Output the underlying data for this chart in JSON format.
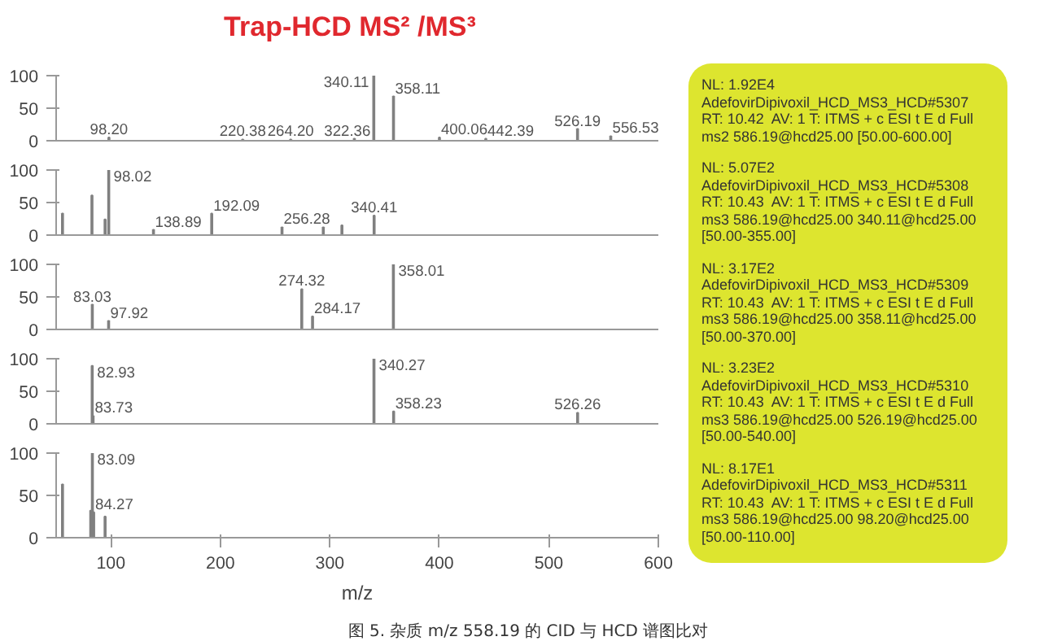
{
  "chart_data": [
    {
      "type": "bar",
      "title": "Trap-HCD MS² /MS³",
      "color": "#808080",
      "xlim": [
        50,
        600
      ],
      "ylim": [
        0,
        100
      ],
      "xticks": [
        100,
        200,
        300,
        400,
        500,
        600
      ],
      "yticks": [
        0,
        50,
        100
      ],
      "tick_labels": "y",
      "x": [
        98.2,
        220.38,
        264.2,
        322.36,
        340.11,
        358.11,
        400.06,
        442.39,
        526.19,
        556.53
      ],
      "values": [
        5,
        2,
        2,
        3,
        100,
        68,
        5,
        3,
        18,
        7
      ],
      "annotations": [
        {
          "text": "98.20",
          "x": 98.2,
          "y": 5
        },
        {
          "text": "220.38",
          "x": 220.38,
          "y": 2
        },
        {
          "text": "264.20",
          "x": 264.2,
          "y": 2
        },
        {
          "text": "322.36",
          "x": 322.36,
          "y": 3
        },
        {
          "text": "340.11",
          "x": 340.11,
          "y": 100
        },
        {
          "text": "358.11",
          "x": 358.11,
          "y": 68
        },
        {
          "text": "400.06",
          "x": 400.06,
          "y": 5
        },
        {
          "text": "442.39",
          "x": 442.39,
          "y": 3
        },
        {
          "text": "526.19",
          "x": 526.19,
          "y": 18
        },
        {
          "text": "556.53",
          "x": 556.53,
          "y": 7
        }
      ]
    },
    {
      "type": "bar",
      "color": "#808080",
      "xlim": [
        50,
        600
      ],
      "ylim": [
        0,
        100
      ],
      "xticks": [
        100,
        200,
        300,
        400,
        500,
        600
      ],
      "yticks": [
        0,
        50,
        100
      ],
      "tick_labels": "y",
      "x": [
        55.8,
        82.7,
        94.7,
        98.02,
        138.89,
        192.09,
        256.28,
        294,
        311,
        340.41
      ],
      "values": [
        33,
        61,
        24,
        100,
        8,
        33,
        12,
        12,
        15,
        30
      ],
      "annotations": [
        {
          "text": "98.02",
          "x": 98.02,
          "y": 100
        },
        {
          "text": "138.89",
          "x": 138.89,
          "y": 8
        },
        {
          "text": "192.09",
          "x": 192.09,
          "y": 33
        },
        {
          "text": "256.28",
          "x": 256.28,
          "y": 12
        },
        {
          "text": "340.41",
          "x": 340.41,
          "y": 30
        }
      ]
    },
    {
      "type": "bar",
      "color": "#808080",
      "xlim": [
        50,
        600
      ],
      "ylim": [
        0,
        100
      ],
      "xticks": [
        100,
        200,
        300,
        400,
        500,
        600
      ],
      "yticks": [
        0,
        50,
        100
      ],
      "tick_labels": "y",
      "x": [
        83.03,
        97.92,
        274.32,
        284.17,
        358.01
      ],
      "values": [
        38,
        13,
        62,
        20,
        100
      ],
      "annotations": [
        {
          "text": "83.03",
          "x": 83.03,
          "y": 38
        },
        {
          "text": "97.92",
          "x": 97.92,
          "y": 13
        },
        {
          "text": "274.32",
          "x": 274.32,
          "y": 62
        },
        {
          "text": "284.17",
          "x": 284.17,
          "y": 20
        },
        {
          "text": "358.01",
          "x": 358.01,
          "y": 100
        }
      ]
    },
    {
      "type": "bar",
      "color": "#808080",
      "xlim": [
        50,
        600
      ],
      "ylim": [
        0,
        100
      ],
      "xticks": [
        100,
        200,
        300,
        400,
        500,
        600
      ],
      "yticks": [
        0,
        50,
        100
      ],
      "tick_labels": "y",
      "x": [
        82.93,
        83.73,
        340.27,
        358.23,
        526.26
      ],
      "values": [
        89,
        12,
        100,
        19,
        17
      ],
      "annotations": [
        {
          "text": "82.93",
          "x": 82.93,
          "y": 89
        },
        {
          "text": "83.73",
          "x": 83.73,
          "y": 12
        },
        {
          "text": "340.27",
          "x": 340.27,
          "y": 100
        },
        {
          "text": "358.23",
          "x": 358.23,
          "y": 19
        },
        {
          "text": "526.26",
          "x": 526.26,
          "y": 17
        }
      ]
    },
    {
      "type": "bar",
      "color": "#808080",
      "xlim": [
        50,
        600
      ],
      "ylim": [
        0,
        100
      ],
      "xticks": [
        100,
        200,
        300,
        400,
        500,
        600
      ],
      "yticks": [
        0,
        50,
        100
      ],
      "xlabel": "m/z",
      "x": [
        55.8,
        81.6,
        83.09,
        84.27,
        94.7
      ],
      "values": [
        63,
        32,
        100,
        30,
        25
      ],
      "annotations": [
        {
          "text": "83.09",
          "x": 83.09,
          "y": 100
        },
        {
          "text": "84.27",
          "x": 84.27,
          "y": 30
        },
        "图 5. 杂质 m/z 558.19 的 CID 与 HCD 谱图比对"
      ]
    },
    {
      "type": "other",
      "color": "#dde52f",
      "annotations": [
        "NL: 1.92E4\nAdefovirDipivoxil_HCD_MS3_HCD#5307\nRT: 10.42  AV: 1 T: ITMS + c ESI t E d Full\nms2 586.19@hcd25.00 [50.00-600.00]",
        "NL: 5.07E2\nAdefovirDipivoxil_HCD_MS3_HCD#5308\nRT: 10.43  AV: 1 T: ITMS + c ESI t E d Full\nms3 586.19@hcd25.00 340.11@hcd25.00\n[50.00-355.00]",
        "NL: 3.17E2\nAdefovirDipivoxil_HCD_MS3_HCD#5309\nRT: 10.43  AV: 1 T: ITMS + c ESI t E d Full\nms3 586.19@hcd25.00 358.11@hcd25.00\n[50.00-370.00]",
        "NL: 3.23E2\nAdefovirDipivoxil_HCD_MS3_HCD#5310\nRT: 10.43  AV: 1 T: ITMS + c ESI t E d Full\nms3 586.19@hcd25.00 526.19@hcd25.00\n[50.00-540.00]",
        "NL: 8.17E1\nAdefovirDipivoxil_HCD_MS3_HCD#5311\nRT: 10.43  AV: 1 T: ITMS + c ESI t E d Full\nms3 586.19@hcd25.00 98.20@hcd25.00\n[50.00-110.00]"
      ]
    }
  ]
}
